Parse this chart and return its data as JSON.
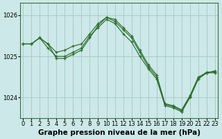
{
  "title": "Graphe pression niveau de la mer (hPa)",
  "bg_color": "#cce8e8",
  "grid_color": "#aacccc",
  "line_color": "#2d6e2d",
  "marker_color": "#2d6e2d",
  "ylim": [
    1023.5,
    1026.3
  ],
  "yticks": [
    1024,
    1025,
    1026
  ],
  "xlim": [
    -0.3,
    23.3
  ],
  "xticks": [
    0,
    1,
    2,
    3,
    4,
    5,
    6,
    7,
    8,
    9,
    10,
    11,
    12,
    13,
    14,
    15,
    16,
    17,
    18,
    19,
    20,
    21,
    22,
    23
  ],
  "series1_x": [
    0,
    1,
    2,
    3,
    4,
    5,
    6,
    7,
    8,
    9,
    10,
    11,
    12,
    13,
    14,
    15,
    16,
    17,
    18,
    19,
    20,
    21,
    22,
    23
  ],
  "series1_y": [
    1025.3,
    1025.3,
    1025.45,
    1025.3,
    1025.1,
    1025.15,
    1025.25,
    1025.3,
    1025.55,
    1025.8,
    1025.95,
    1025.9,
    1025.7,
    1025.5,
    1025.15,
    1024.8,
    1024.55,
    1023.85,
    1023.8,
    1023.7,
    1024.05,
    1024.5,
    1024.6,
    1024.65
  ],
  "series2_x": [
    0,
    1,
    2,
    3,
    4,
    5,
    6,
    7,
    8,
    9,
    10,
    11,
    12,
    13,
    14,
    15,
    16,
    17,
    18,
    19,
    20,
    21,
    22,
    23
  ],
  "series2_y": [
    1025.3,
    1025.3,
    1025.45,
    1025.2,
    1025.0,
    1025.0,
    1025.1,
    1025.2,
    1025.5,
    1025.7,
    1025.9,
    1025.8,
    1025.55,
    1025.35,
    1025.0,
    1024.7,
    1024.45,
    1023.8,
    1023.75,
    1023.65,
    1024.0,
    1024.45,
    1024.6,
    1024.6
  ],
  "series3_x": [
    0,
    1,
    2,
    3,
    4,
    5,
    6,
    7,
    8,
    9,
    10,
    11,
    12,
    13,
    14,
    15,
    16,
    17,
    18,
    19,
    20,
    21,
    22,
    23
  ],
  "series3_y": [
    1025.3,
    1025.3,
    1025.45,
    1025.3,
    1024.95,
    1024.95,
    1025.05,
    1025.15,
    1025.45,
    1025.75,
    1025.95,
    1025.85,
    1025.65,
    1025.45,
    1025.1,
    1024.75,
    1024.5,
    1023.83,
    1023.78,
    1023.68,
    1024.02,
    1024.48,
    1024.62,
    1024.62
  ],
  "title_fontsize": 7.5,
  "tick_fontsize": 6.0
}
